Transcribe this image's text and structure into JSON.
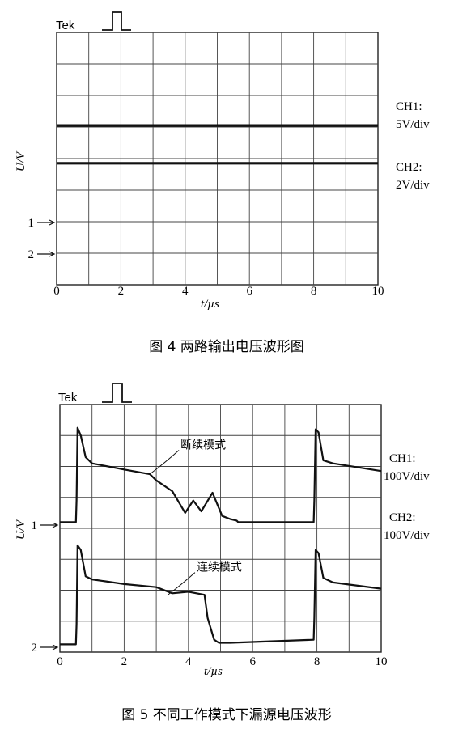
{
  "chart_data": [
    {
      "type": "line",
      "instrument": "Tek",
      "caption": "图 4    两路输出电压波形图",
      "xlabel": "t/µs",
      "ylabel": "U/V",
      "xticks": [
        "0",
        "2",
        "4",
        "6",
        "8",
        "10"
      ],
      "xlim": [
        0,
        10
      ],
      "grid": true,
      "ground_markers": [
        "1",
        "2"
      ],
      "series": [
        {
          "name": "CH1: 5V/div",
          "label_line1": "CH1:",
          "label_line2": "5V/div",
          "x": [
            0,
            10
          ],
          "y_div": [
            5.05,
            5.05
          ]
        },
        {
          "name": "CH2: 2V/div",
          "label_line1": "CH2:",
          "label_line2": "2V/div",
          "x": [
            0,
            10
          ],
          "y_div": [
            3.85,
            3.85
          ]
        }
      ]
    },
    {
      "type": "line",
      "instrument": "Tek",
      "caption": "图 5    不同工作模式下漏源电压波形",
      "xlabel": "t/µs",
      "ylabel": "U/V",
      "xticks": [
        "0",
        "2",
        "4",
        "6",
        "8",
        "10"
      ],
      "xlim": [
        0,
        10
      ],
      "grid": true,
      "ground_markers": [
        "1",
        "2"
      ],
      "annotations": [
        {
          "text": "断续模式",
          "x": 3.0,
          "y_div": 6.0
        },
        {
          "text": "连续模式",
          "x": 3.5,
          "y_div": 2.05
        }
      ],
      "series": [
        {
          "name": "CH1: 100V/div",
          "label_line1": "CH1:",
          "label_line2": "100V/div",
          "x": [
            0,
            0.5,
            0.52,
            0.55,
            0.65,
            0.8,
            1.0,
            2.0,
            2.8,
            3.0,
            3.5,
            3.9,
            4.15,
            4.4,
            4.75,
            5.05,
            5.3,
            5.5,
            5.55,
            7.9,
            7.92,
            7.96,
            8.05,
            8.2,
            8.5,
            10
          ],
          "y_div": [
            4.2,
            4.2,
            4.9,
            7.25,
            7.0,
            6.3,
            6.1,
            5.9,
            5.75,
            5.55,
            5.2,
            4.5,
            4.9,
            4.55,
            5.15,
            4.4,
            4.3,
            4.25,
            4.2,
            4.2,
            4.9,
            7.2,
            7.1,
            6.2,
            6.1,
            5.85
          ]
        },
        {
          "name": "CH2: 100V/div",
          "label_line1": "CH2:",
          "label_line2": "100V/div",
          "x": [
            0,
            0.5,
            0.52,
            0.55,
            0.65,
            0.8,
            1.0,
            2.0,
            3.0,
            3.5,
            4.0,
            4.5,
            4.6,
            4.8,
            4.95,
            5.3,
            7.9,
            7.92,
            7.96,
            8.05,
            8.2,
            8.5,
            10
          ],
          "y_div": [
            0.25,
            0.25,
            0.9,
            3.45,
            3.3,
            2.45,
            2.35,
            2.2,
            2.1,
            1.9,
            1.95,
            1.85,
            1.1,
            0.4,
            0.3,
            0.3,
            0.4,
            1.1,
            3.3,
            3.2,
            2.4,
            2.25,
            2.05
          ]
        }
      ]
    }
  ]
}
